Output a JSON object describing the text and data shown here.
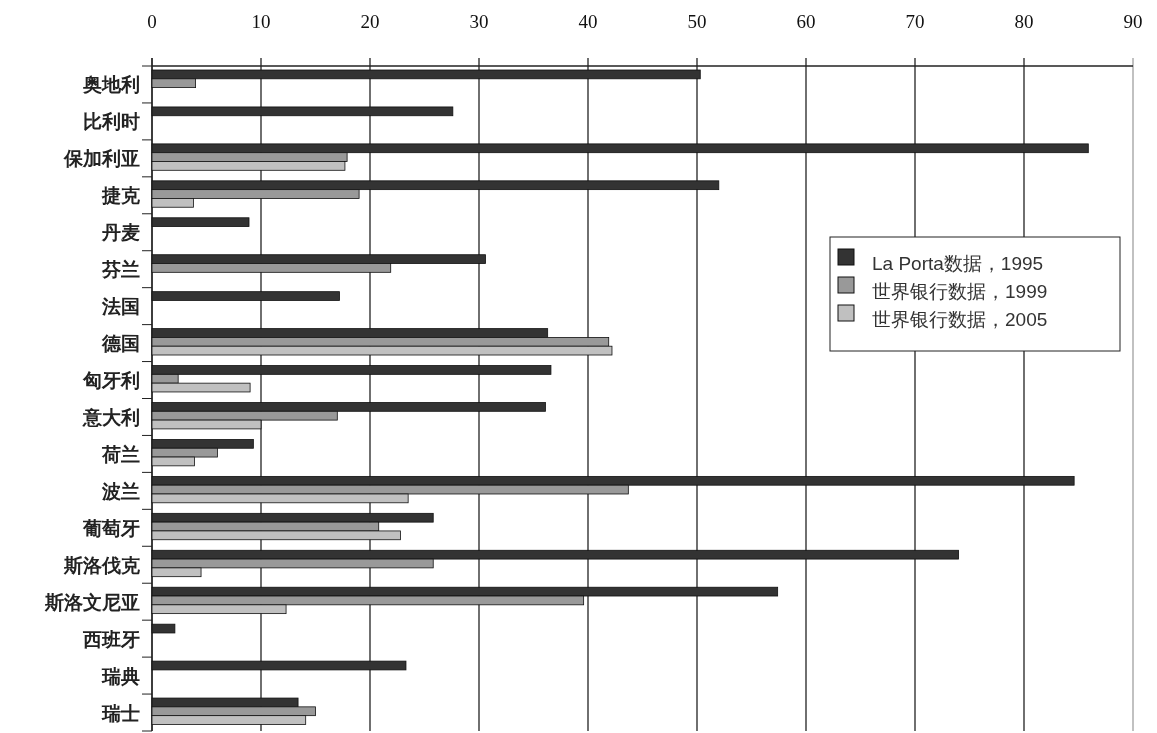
{
  "chart_data": {
    "type": "bar",
    "orientation": "horizontal",
    "categories": [
      "奥地利",
      "比利时",
      "保加利亚",
      "捷克",
      "丹麦",
      "芬兰",
      "法国",
      "德国",
      "匈牙利",
      "意大利",
      "荷兰",
      "波兰",
      "葡萄牙",
      "斯洛伐克",
      "斯洛文尼亚",
      "西班牙",
      "瑞典",
      "瑞士"
    ],
    "series": [
      {
        "name": "La Porta数据，1995",
        "color": "#333333",
        "values": [
          50.3,
          27.6,
          85.9,
          52.0,
          8.9,
          30.6,
          17.2,
          36.3,
          36.6,
          36.1,
          9.3,
          84.6,
          25.8,
          74.0,
          57.4,
          2.1,
          23.3,
          13.4
        ]
      },
      {
        "name": "世界银行数据，1999",
        "color": "#999999",
        "values": [
          4.0,
          null,
          17.9,
          19.0,
          null,
          21.9,
          null,
          41.9,
          2.4,
          17.0,
          6.0,
          43.7,
          20.8,
          25.8,
          39.6,
          null,
          null,
          15.0
        ]
      },
      {
        "name": "世界银行数据，2005",
        "color": "#c0c0c0",
        "values": [
          null,
          null,
          17.7,
          3.8,
          null,
          null,
          null,
          42.2,
          9.0,
          10.0,
          3.9,
          23.5,
          22.8,
          4.5,
          12.3,
          null,
          null,
          14.1
        ]
      }
    ],
    "xlim": [
      0,
      90
    ],
    "xticks": [
      0,
      10,
      20,
      30,
      40,
      50,
      60,
      70,
      80,
      90
    ],
    "grid": "x",
    "legend": "right"
  }
}
